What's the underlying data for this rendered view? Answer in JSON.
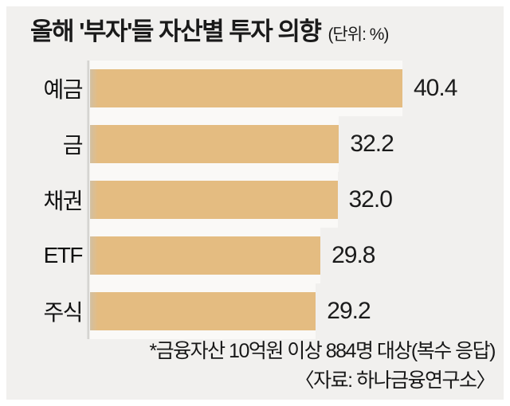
{
  "header": {
    "title": "올해 '부자'들 자산별 투자 의향",
    "unit": "(단위: %)"
  },
  "chart_data": {
    "type": "bar",
    "orientation": "horizontal",
    "title": "올해 '부자'들 자산별 투자 의향",
    "unit_label": "(단위: %)",
    "categories": [
      "예금",
      "금",
      "채권",
      "ETF",
      "주식"
    ],
    "values": [
      40.4,
      32.2,
      32.0,
      29.8,
      29.2
    ],
    "value_labels": [
      "40.4",
      "32.2",
      "32.0",
      "29.8",
      "29.2"
    ],
    "xlim": [
      0,
      41.6
    ],
    "grid": false,
    "legend": false,
    "bar_color": "#e4bc81"
  },
  "footer": {
    "note": "*금융자산 10억원 이상 884명 대상(복수 응답)",
    "source": "〈자료: 하나금융연구소〉"
  },
  "colors": {
    "background": "#f1f0ee",
    "frame": "#ffffff",
    "bar": "#e4bc81",
    "text": "#1a1a1a"
  }
}
